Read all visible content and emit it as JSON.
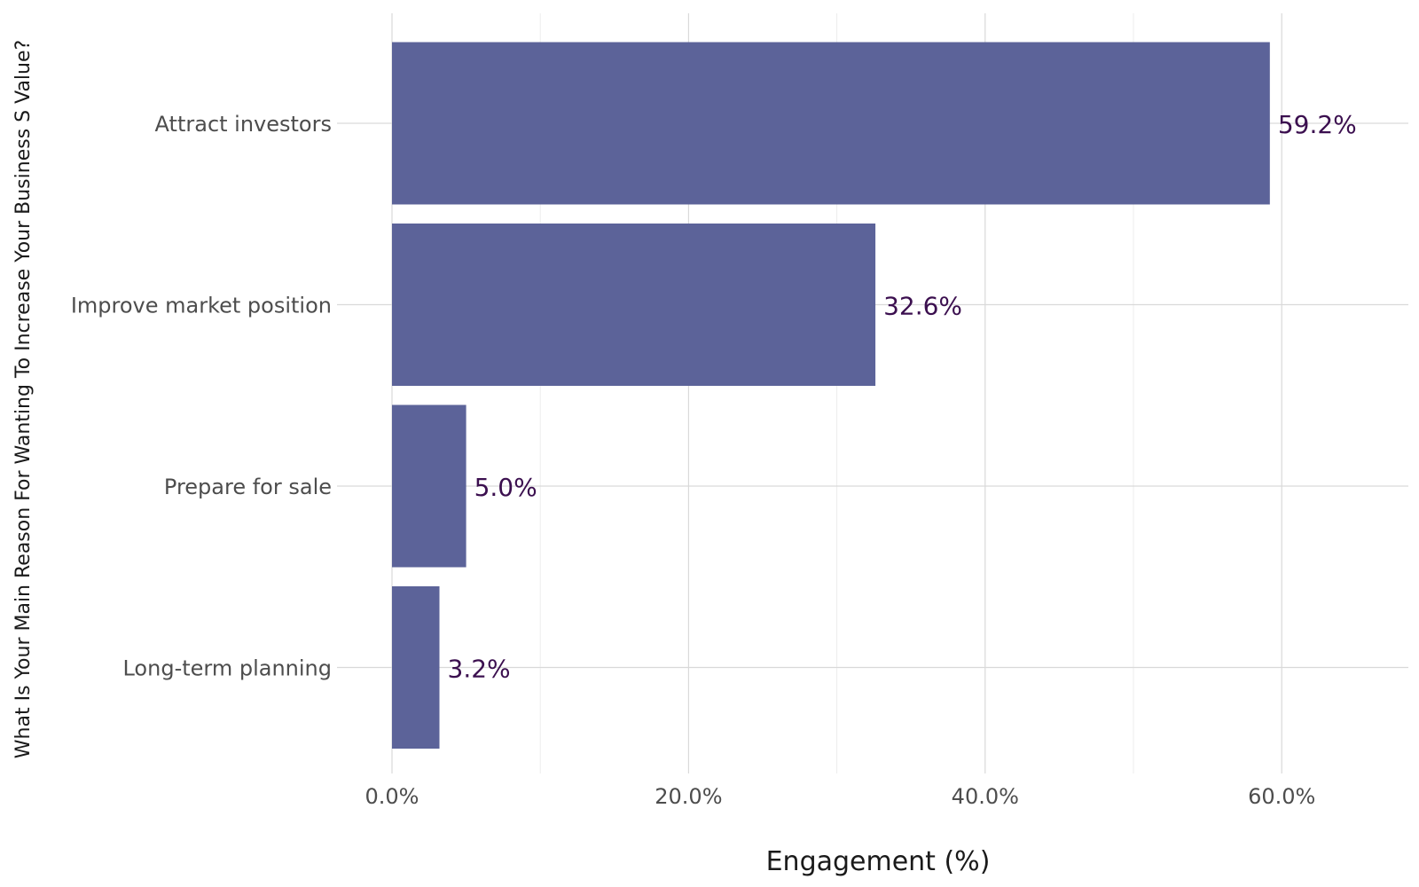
{
  "chart_data": {
    "type": "bar",
    "orientation": "horizontal",
    "categories": [
      "Attract investors",
      "Improve market position",
      "Prepare for sale",
      "Long-term planning"
    ],
    "values": [
      59.2,
      32.6,
      5.0,
      3.2
    ],
    "data_labels": [
      "59.2%",
      "32.6%",
      "5.0%",
      "3.2%"
    ],
    "xlabel": "Engagement (%)",
    "ylabel": "What Is Your Main Reason For Wanting To Increase Your Business S Value?",
    "xlim": [
      0,
      68.5
    ],
    "xticks": [
      0,
      20,
      40,
      60
    ],
    "xtick_labels": [
      "0.0%",
      "20.0%",
      "40.0%",
      "60.0%"
    ],
    "grid": true,
    "legend": "none",
    "bar_color": "#5c6399",
    "label_color": "#3b0f4f",
    "gridline_color": "#d9d9d9"
  }
}
